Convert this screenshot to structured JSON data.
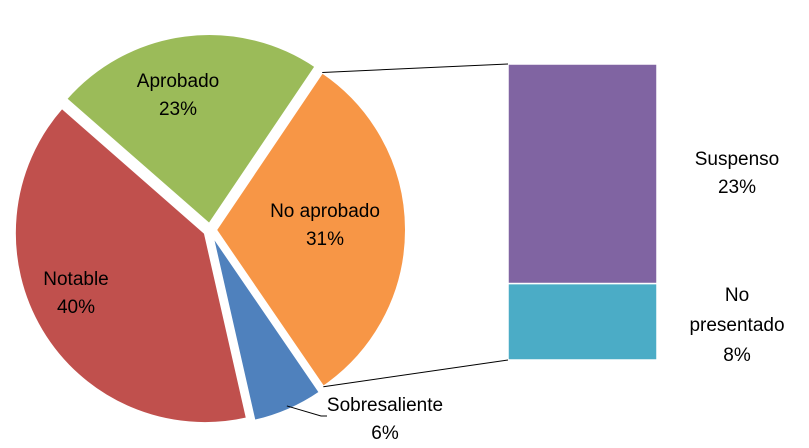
{
  "chart_data": {
    "type": "bar-of-pie",
    "pie": {
      "categories": [
        "No aprobado",
        "Sobresaliente",
        "Notable",
        "Aprobado"
      ],
      "values": [
        31,
        6,
        40,
        23
      ],
      "value_labels": [
        "31%",
        "6%",
        "40%",
        "23%"
      ],
      "colors": [
        "#f79646",
        "#4f81bd",
        "#c0504d",
        "#9bbb59"
      ]
    },
    "bar": {
      "categories": [
        "Suspenso",
        "No presentado"
      ],
      "values": [
        23,
        8
      ],
      "value_labels": [
        "23%",
        "8%"
      ],
      "colors": [
        "#8064a2",
        "#4bacc6"
      ]
    }
  }
}
